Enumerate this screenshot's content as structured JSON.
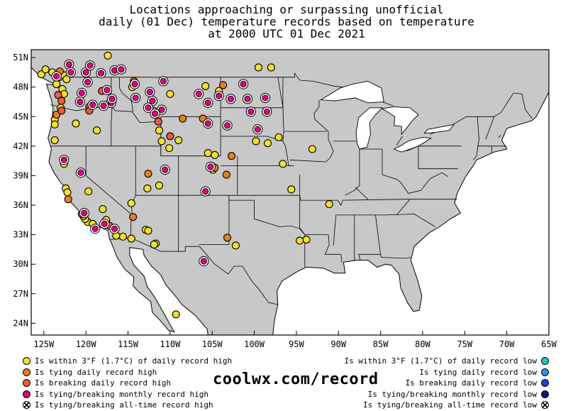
{
  "title": {
    "line1": "Locations approaching or surpassing unofficial",
    "line2": "daily (01 Dec) temperature records based on temperature",
    "line3": "at 2000 UTC 01 Dec 2021"
  },
  "map": {
    "lat_labels": [
      "51N",
      "48N",
      "45N",
      "42N",
      "39N",
      "36N",
      "33N",
      "30N",
      "27N",
      "24N"
    ],
    "lat_values": [
      51,
      48,
      45,
      42,
      39,
      36,
      33,
      30,
      27,
      24
    ],
    "lon_labels": [
      "125W",
      "120W",
      "115W",
      "110W",
      "105W",
      "100W",
      "95W",
      "90W",
      "85W",
      "80W",
      "75W",
      "70W",
      "65W"
    ],
    "lon_values": [
      -125,
      -120,
      -115,
      -110,
      -105,
      -100,
      -95,
      -90,
      -85,
      -80,
      -75,
      -70,
      -65
    ],
    "lon_range": [
      -126.5,
      -65
    ],
    "lat_range": [
      22.8,
      51.8
    ],
    "land_color": "#c8c8c8",
    "water_color": "#ffffff"
  },
  "categories": {
    "near_high": {
      "color": "#f0e030",
      "label": "Is within 3°F (1.7°C) of daily record high"
    },
    "tie_high": {
      "color": "#e8801c",
      "label": "Is tying daily record high"
    },
    "break_high": {
      "color": "#f05a3c",
      "label": "Is breaking daily record high"
    },
    "monthly_high": {
      "color": "#e0007a",
      "label": "Is tying/breaking monthly record high"
    },
    "alltime_high": {
      "color": "#ffffff",
      "label": "Is tying/breaking all-time record high"
    },
    "near_low": {
      "color": "#20c8c0",
      "label": "Is within 3°F (1.7°C) of daily record low"
    },
    "tie_low": {
      "color": "#3090e8",
      "label": "Is tying daily record low"
    },
    "break_low": {
      "color": "#2040e0",
      "label": "Is breaking daily record low"
    },
    "monthly_low": {
      "color": "#101070",
      "label": "Is tying/breaking monthly record low"
    },
    "alltime_low": {
      "color": "#ffffff",
      "label": "Is tying/breaking all-time record low"
    }
  },
  "legend_left": [
    "near_high",
    "tie_high",
    "break_high",
    "monthly_high",
    "alltime_high"
  ],
  "legend_right": [
    "near_low",
    "tie_low",
    "break_low",
    "monthly_low",
    "alltime_low"
  ],
  "brand": "coolwx.com/record",
  "stations": [
    {
      "lon": -125.3,
      "lat": 49.3,
      "cat": "near_high"
    },
    {
      "lon": -124.8,
      "lat": 49.8,
      "cat": "near_high"
    },
    {
      "lon": -124.0,
      "lat": 49.5,
      "cat": "near_high"
    },
    {
      "lon": -123.2,
      "lat": 49.0,
      "cat": "near_high"
    },
    {
      "lon": -122.6,
      "lat": 49.2,
      "cat": "near_high"
    },
    {
      "lon": -122.3,
      "lat": 48.8,
      "cat": "near_high"
    },
    {
      "lon": -123.5,
      "lat": 48.3,
      "cat": "near_high"
    },
    {
      "lon": -122.8,
      "lat": 47.8,
      "cat": "near_high"
    },
    {
      "lon": -122.6,
      "lat": 47.3,
      "cat": "near_high"
    },
    {
      "lon": -123.0,
      "lat": 45.9,
      "cat": "near_high"
    },
    {
      "lon": -123.7,
      "lat": 44.7,
      "cat": "near_high"
    },
    {
      "lon": -123.7,
      "lat": 44.2,
      "cat": "near_high"
    },
    {
      "lon": -121.2,
      "lat": 44.3,
      "cat": "near_high"
    },
    {
      "lon": -123.7,
      "lat": 42.6,
      "cat": "near_high"
    },
    {
      "lon": -118.7,
      "lat": 43.6,
      "cat": "near_high"
    },
    {
      "lon": -117.4,
      "lat": 51.2,
      "cat": "near_high"
    },
    {
      "lon": -114.5,
      "lat": 48.0,
      "cat": "near_high"
    },
    {
      "lon": -112.0,
      "lat": 45.6,
      "cat": "near_high"
    },
    {
      "lon": -111.3,
      "lat": 43.6,
      "cat": "near_high"
    },
    {
      "lon": -110.0,
      "lat": 47.3,
      "cat": "near_high"
    },
    {
      "lon": -105.8,
      "lat": 48.1,
      "cat": "near_high"
    },
    {
      "lon": -104.2,
      "lat": 47.6,
      "cat": "near_high"
    },
    {
      "lon": -99.5,
      "lat": 50.0,
      "cat": "near_high"
    },
    {
      "lon": -98.0,
      "lat": 50.0,
      "cat": "near_high"
    },
    {
      "lon": -111.0,
      "lat": 42.5,
      "cat": "near_high"
    },
    {
      "lon": -109.0,
      "lat": 42.6,
      "cat": "near_high"
    },
    {
      "lon": -105.5,
      "lat": 41.3,
      "cat": "near_high"
    },
    {
      "lon": -104.7,
      "lat": 41.1,
      "cat": "near_high"
    },
    {
      "lon": -104.9,
      "lat": 39.6,
      "cat": "near_high"
    },
    {
      "lon": -99.8,
      "lat": 42.5,
      "cat": "near_high"
    },
    {
      "lon": -98.4,
      "lat": 42.3,
      "cat": "near_high"
    },
    {
      "lon": -97.1,
      "lat": 42.9,
      "cat": "near_high"
    },
    {
      "lon": -93.1,
      "lat": 41.7,
      "cat": "near_high"
    },
    {
      "lon": -96.6,
      "lat": 40.2,
      "cat": "near_high"
    },
    {
      "lon": -95.6,
      "lat": 37.6,
      "cat": "near_high"
    },
    {
      "lon": -91.1,
      "lat": 36.1,
      "cat": "near_high"
    },
    {
      "lon": -94.6,
      "lat": 32.4,
      "cat": "near_high"
    },
    {
      "lon": -93.8,
      "lat": 32.5,
      "cat": "near_high"
    },
    {
      "lon": -102.2,
      "lat": 31.9,
      "cat": "near_high"
    },
    {
      "lon": -109.3,
      "lat": 24.9,
      "cat": "near_high"
    },
    {
      "lon": -122.6,
      "lat": 40.2,
      "cat": "near_high"
    },
    {
      "lon": -122.4,
      "lat": 37.7,
      "cat": "near_high"
    },
    {
      "lon": -122.2,
      "lat": 37.3,
      "cat": "near_high"
    },
    {
      "lon": -119.7,
      "lat": 37.4,
      "cat": "near_high"
    },
    {
      "lon": -119.8,
      "lat": 34.3,
      "cat": "near_high"
    },
    {
      "lon": -119.2,
      "lat": 34.1,
      "cat": "near_high"
    },
    {
      "lon": -117.6,
      "lat": 34.5,
      "cat": "near_high"
    },
    {
      "lon": -118.0,
      "lat": 35.6,
      "cat": "near_high"
    },
    {
      "lon": -115.6,
      "lat": 32.8,
      "cat": "near_high"
    },
    {
      "lon": -116.4,
      "lat": 32.9,
      "cat": "near_high"
    },
    {
      "lon": -114.6,
      "lat": 32.6,
      "cat": "near_high"
    },
    {
      "lon": -114.6,
      "lat": 36.2,
      "cat": "near_high"
    },
    {
      "lon": -112.9,
      "lat": 33.5,
      "cat": "near_high"
    },
    {
      "lon": -112.6,
      "lat": 33.4,
      "cat": "near_high"
    },
    {
      "lon": -111.7,
      "lat": 32.1,
      "cat": "near_high"
    },
    {
      "lon": -111.9,
      "lat": 32.0,
      "cat": "near_high"
    },
    {
      "lon": -112.7,
      "lat": 37.7,
      "cat": "near_high"
    },
    {
      "lon": -111.3,
      "lat": 38.0,
      "cat": "near_high"
    },
    {
      "lon": -110.1,
      "lat": 41.8,
      "cat": "near_high"
    },
    {
      "lon": -120.1,
      "lat": 34.6,
      "cat": "near_high"
    },
    {
      "lon": -120.3,
      "lat": 34.9,
      "cat": "near_high"
    },
    {
      "lon": -103.7,
      "lat": 48.2,
      "cat": "tie_high"
    },
    {
      "lon": -114.3,
      "lat": 48.6,
      "cat": "tie_high"
    },
    {
      "lon": -123.1,
      "lat": 49.6,
      "cat": "tie_high"
    },
    {
      "lon": -123.5,
      "lat": 45.2,
      "cat": "tie_high"
    },
    {
      "lon": -106.1,
      "lat": 44.8,
      "cat": "tie_high"
    },
    {
      "lon": -104.7,
      "lat": 39.8,
      "cat": "tie_high"
    },
    {
      "lon": -103.3,
      "lat": 39.1,
      "cat": "tie_high"
    },
    {
      "lon": -102.7,
      "lat": 41.0,
      "cat": "tie_high"
    },
    {
      "lon": -112.6,
      "lat": 39.2,
      "cat": "tie_high"
    },
    {
      "lon": -122.1,
      "lat": 36.6,
      "cat": "tie_high"
    },
    {
      "lon": -114.4,
      "lat": 34.8,
      "cat": "tie_high"
    },
    {
      "lon": -103.2,
      "lat": 32.7,
      "cat": "tie_high"
    },
    {
      "lon": -108.5,
      "lat": 44.8,
      "cat": "tie_high"
    },
    {
      "lon": -123.3,
      "lat": 47.2,
      "cat": "break_high"
    },
    {
      "lon": -122.9,
      "lat": 46.6,
      "cat": "break_high"
    },
    {
      "lon": -119.6,
      "lat": 46.0,
      "cat": "break_high"
    },
    {
      "lon": -118.1,
      "lat": 47.6,
      "cat": "break_high"
    },
    {
      "lon": -119.6,
      "lat": 45.6,
      "cat": "break_high"
    },
    {
      "lon": -111.4,
      "lat": 44.5,
      "cat": "break_high"
    },
    {
      "lon": -110.0,
      "lat": 43.0,
      "cat": "break_high"
    },
    {
      "lon": -120.5,
      "lat": 35.1,
      "cat": "break_high"
    },
    {
      "lon": -117.4,
      "lat": 34.0,
      "cat": "break_high"
    },
    {
      "lon": -117.2,
      "lat": 33.9,
      "cat": "break_high"
    },
    {
      "lon": -105.1,
      "lat": 40.0,
      "cat": "break_high"
    },
    {
      "lon": -122.9,
      "lat": 45.6,
      "cat": "break_high"
    },
    {
      "lon": -123.5,
      "lat": 49.1,
      "cat": "monthly_high"
    },
    {
      "lon": -122.0,
      "lat": 50.3,
      "cat": "monthly_high"
    },
    {
      "lon": -121.8,
      "lat": 49.5,
      "cat": "monthly_high"
    },
    {
      "lon": -120.0,
      "lat": 49.5,
      "cat": "monthly_high"
    },
    {
      "lon": -119.5,
      "lat": 50.2,
      "cat": "monthly_high"
    },
    {
      "lon": -118.2,
      "lat": 49.4,
      "cat": "monthly_high"
    },
    {
      "lon": -116.6,
      "lat": 49.7,
      "cat": "monthly_high"
    },
    {
      "lon": -115.8,
      "lat": 49.8,
      "cat": "monthly_high"
    },
    {
      "lon": -119.8,
      "lat": 48.5,
      "cat": "monthly_high"
    },
    {
      "lon": -120.5,
      "lat": 47.4,
      "cat": "monthly_high"
    },
    {
      "lon": -117.5,
      "lat": 47.7,
      "cat": "monthly_high"
    },
    {
      "lon": -117.0,
      "lat": 46.4,
      "cat": "monthly_high"
    },
    {
      "lon": -119.2,
      "lat": 46.2,
      "cat": "monthly_high"
    },
    {
      "lon": -120.7,
      "lat": 46.5,
      "cat": "monthly_high"
    },
    {
      "lon": -117.9,
      "lat": 46.1,
      "cat": "monthly_high"
    },
    {
      "lon": -116.9,
      "lat": 46.8,
      "cat": "monthly_high"
    },
    {
      "lon": -114.1,
      "lat": 46.9,
      "cat": "monthly_high"
    },
    {
      "lon": -114.2,
      "lat": 48.3,
      "cat": "monthly_high"
    },
    {
      "lon": -112.1,
      "lat": 46.6,
      "cat": "monthly_high"
    },
    {
      "lon": -110.8,
      "lat": 48.6,
      "cat": "monthly_high"
    },
    {
      "lon": -112.4,
      "lat": 47.5,
      "cat": "monthly_high"
    },
    {
      "lon": -112.6,
      "lat": 45.9,
      "cat": "monthly_high"
    },
    {
      "lon": -111.0,
      "lat": 45.7,
      "cat": "monthly_high"
    },
    {
      "lon": -111.8,
      "lat": 45.3,
      "cat": "monthly_high"
    },
    {
      "lon": -106.6,
      "lat": 47.3,
      "cat": "monthly_high"
    },
    {
      "lon": -104.2,
      "lat": 47.1,
      "cat": "monthly_high"
    },
    {
      "lon": -105.5,
      "lat": 46.4,
      "cat": "monthly_high"
    },
    {
      "lon": -102.8,
      "lat": 46.8,
      "cat": "monthly_high"
    },
    {
      "lon": -100.8,
      "lat": 46.8,
      "cat": "monthly_high"
    },
    {
      "lon": -101.3,
      "lat": 48.3,
      "cat": "monthly_high"
    },
    {
      "lon": -98.7,
      "lat": 46.9,
      "cat": "monthly_high"
    },
    {
      "lon": -100.4,
      "lat": 45.5,
      "cat": "monthly_high"
    },
    {
      "lon": -98.5,
      "lat": 45.5,
      "cat": "monthly_high"
    },
    {
      "lon": -99.6,
      "lat": 43.7,
      "cat": "monthly_high"
    },
    {
      "lon": -105.5,
      "lat": 44.3,
      "cat": "monthly_high"
    },
    {
      "lon": -103.2,
      "lat": 44.1,
      "cat": "monthly_high"
    },
    {
      "lon": -122.6,
      "lat": 40.6,
      "cat": "monthly_high"
    },
    {
      "lon": -120.6,
      "lat": 39.3,
      "cat": "monthly_high"
    },
    {
      "lon": -120.2,
      "lat": 35.2,
      "cat": "monthly_high"
    },
    {
      "lon": -118.9,
      "lat": 33.6,
      "cat": "monthly_high"
    },
    {
      "lon": -117.8,
      "lat": 34.1,
      "cat": "monthly_high"
    },
    {
      "lon": -116.6,
      "lat": 33.6,
      "cat": "monthly_high"
    },
    {
      "lon": -110.6,
      "lat": 39.6,
      "cat": "monthly_high"
    },
    {
      "lon": -105.2,
      "lat": 39.9,
      "cat": "monthly_high"
    },
    {
      "lon": -105.8,
      "lat": 37.4,
      "cat": "monthly_high"
    },
    {
      "lon": -106.0,
      "lat": 30.3,
      "cat": "monthly_high"
    }
  ]
}
